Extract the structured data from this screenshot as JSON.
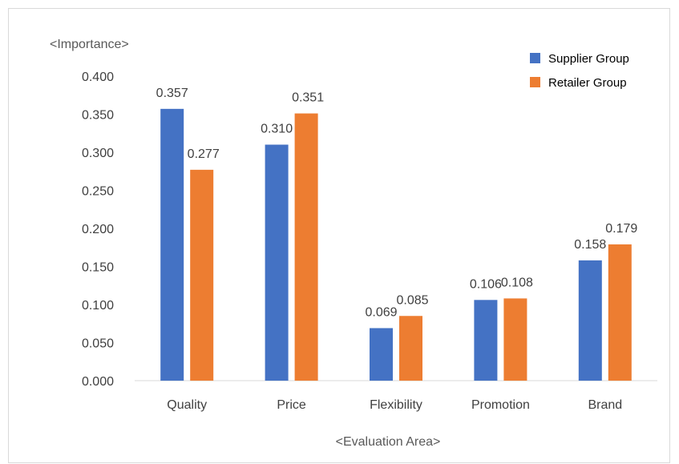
{
  "chart_data": {
    "type": "bar",
    "title": "",
    "ylabel": "<Importance>",
    "xlabel": "<Evaluation Area>",
    "categories": [
      "Quality",
      "Price",
      "Flexibility",
      "Promotion",
      "Brand"
    ],
    "series": [
      {
        "name": "Supplier Group",
        "color": "#4472C4",
        "values": [
          0.357,
          0.31,
          0.069,
          0.106,
          0.158
        ]
      },
      {
        "name": "Retailer Group",
        "color": "#ED7D31",
        "values": [
          0.277,
          0.351,
          0.085,
          0.108,
          0.179
        ]
      }
    ],
    "data_labels": [
      [
        "0.357",
        "0.310",
        "0.069",
        "0.106",
        "0.158"
      ],
      [
        "0.277",
        "0.351",
        "0.085",
        "0.108",
        "0.179"
      ]
    ],
    "yticks": [
      "0.000",
      "0.050",
      "0.100",
      "0.150",
      "0.200",
      "0.250",
      "0.300",
      "0.350",
      "0.400"
    ],
    "ylim": [
      0,
      0.4
    ],
    "grid": false,
    "legend": "top-right"
  }
}
